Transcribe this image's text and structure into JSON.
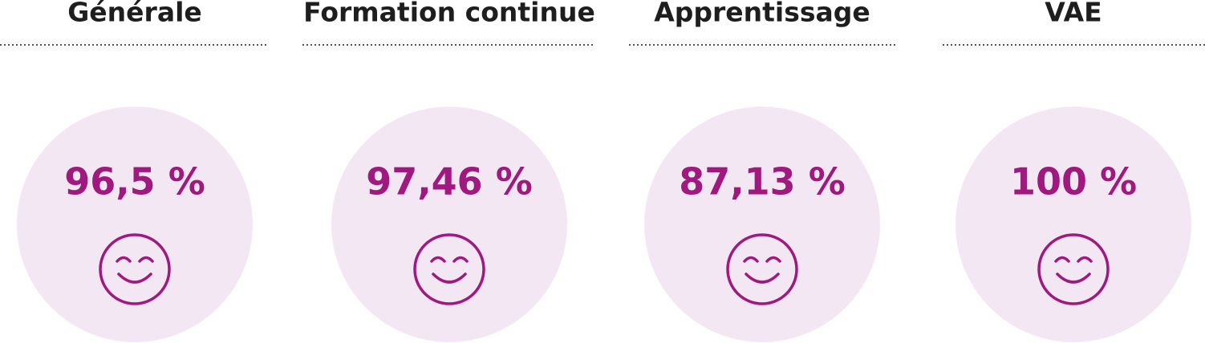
{
  "items": [
    {
      "label": "Générale",
      "value": "96,5 %"
    },
    {
      "label": "Formation continue",
      "value": "97,46 %"
    },
    {
      "label": "Apprentissage",
      "value": "87,13 %"
    },
    {
      "label": "VAE",
      "value": "100 %"
    }
  ]
}
